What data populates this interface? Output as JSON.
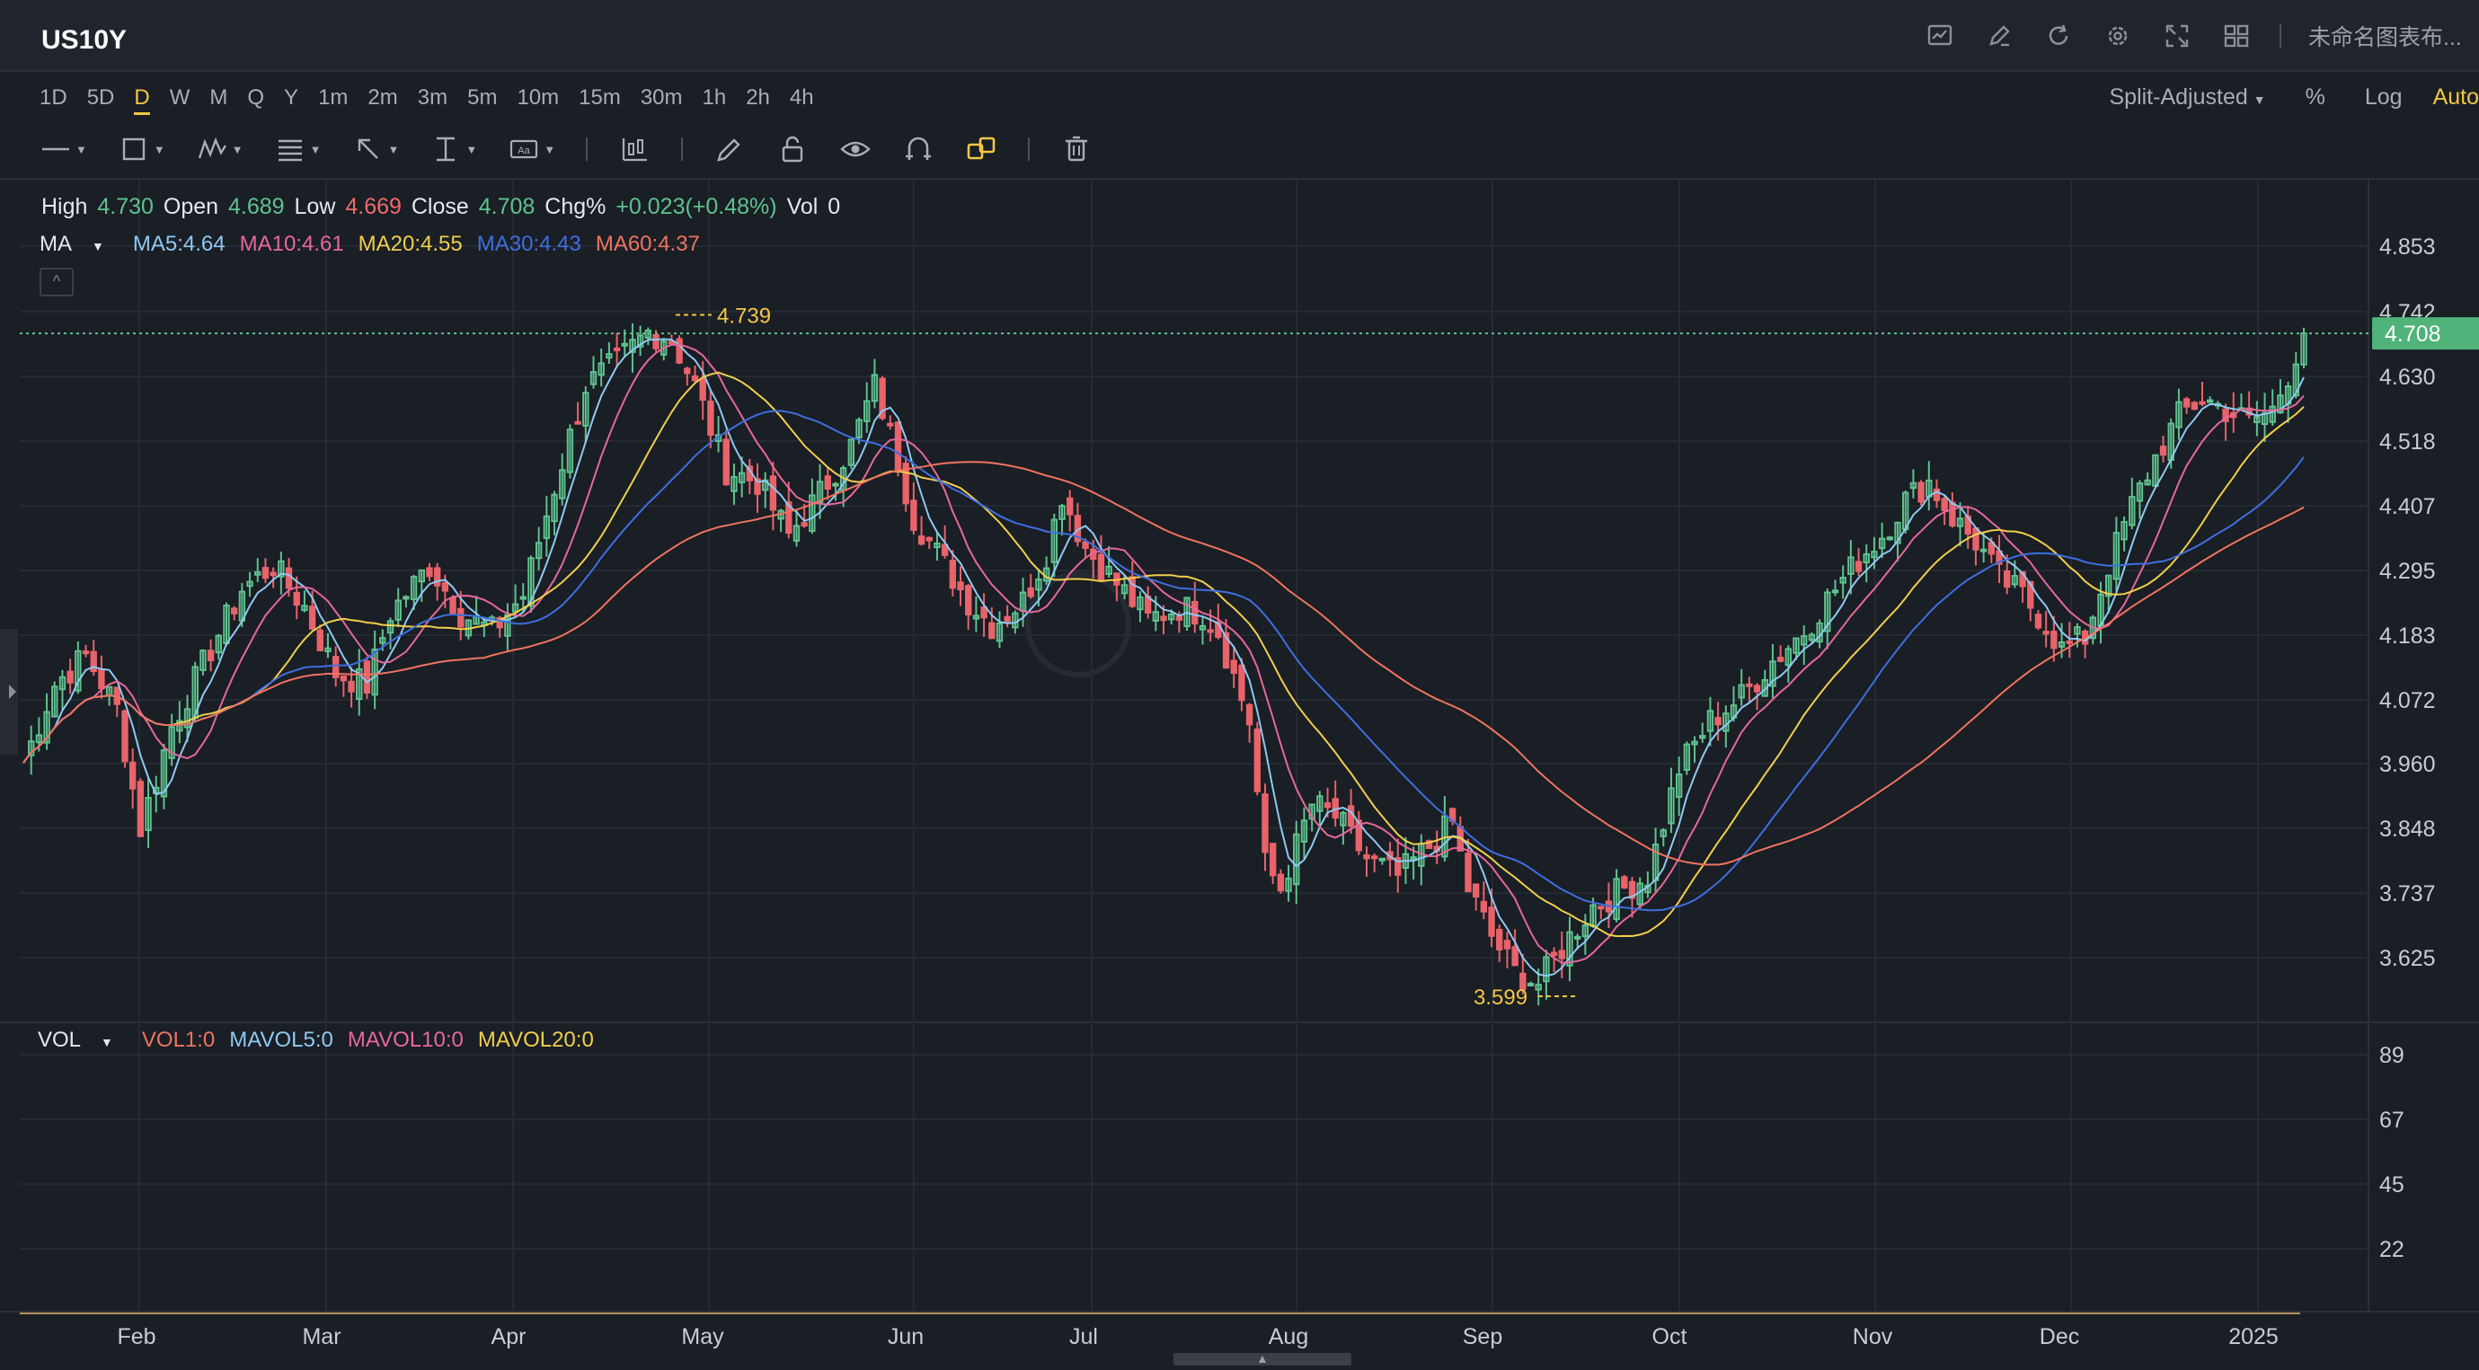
{
  "header": {
    "symbol": "US10Y",
    "layout_name": "未命名图表布...",
    "icons": [
      "indicator-chart-icon",
      "drawing-pen-icon",
      "refresh-icon",
      "settings-gear-icon",
      "fullscreen-icon",
      "layout-grid-icon"
    ]
  },
  "periods": [
    {
      "label": "1D",
      "active": false
    },
    {
      "label": "5D",
      "active": false
    },
    {
      "label": "D",
      "active": true
    },
    {
      "label": "W",
      "active": false
    },
    {
      "label": "M",
      "active": false
    },
    {
      "label": "Q",
      "active": false
    },
    {
      "label": "Y",
      "active": false
    },
    {
      "label": "1m",
      "active": false
    },
    {
      "label": "2m",
      "active": false
    },
    {
      "label": "3m",
      "active": false
    },
    {
      "label": "5m",
      "active": false
    },
    {
      "label": "10m",
      "active": false
    },
    {
      "label": "15m",
      "active": false
    },
    {
      "label": "30m",
      "active": false
    },
    {
      "label": "1h",
      "active": false
    },
    {
      "label": "2h",
      "active": false
    },
    {
      "label": "4h",
      "active": false
    }
  ],
  "right_options": {
    "adjust": "Split-Adjusted",
    "percent": "%",
    "log": "Log",
    "auto": "Auto"
  },
  "ohlc": {
    "high_label": "High",
    "high": "4.730",
    "open_label": "Open",
    "open": "4.689",
    "low_label": "Low",
    "low": "4.669",
    "close_label": "Close",
    "close": "4.708",
    "chg_label": "Chg%",
    "chg": "+0.023(+0.48%)",
    "vol_label": "Vol",
    "vol": "0"
  },
  "ma_legend": {
    "name": "MA",
    "items": [
      {
        "text": "MA5:4.64",
        "color": "#8fc9f2"
      },
      {
        "text": "MA10:4.61",
        "color": "#e6689a"
      },
      {
        "text": "MA20:4.55",
        "color": "#f0cf4c"
      },
      {
        "text": "MA30:4.43",
        "color": "#3d6fe0"
      },
      {
        "text": "MA60:4.37",
        "color": "#f0735f"
      }
    ]
  },
  "vol_legend": {
    "name": "VOL",
    "items": [
      {
        "text": "VOL1:0",
        "color": "#f0735f"
      },
      {
        "text": "MAVOL5:0",
        "color": "#8fc9f2"
      },
      {
        "text": "MAVOL10:0",
        "color": "#e6689a"
      },
      {
        "text": "MAVOL20:0",
        "color": "#f0cf4c"
      }
    ]
  },
  "chart_data": {
    "type": "candlestick",
    "price_ticks": [
      "4.853",
      "4.742",
      "4.630",
      "4.518",
      "4.407",
      "4.295",
      "4.183",
      "4.072",
      "3.960",
      "3.848",
      "3.737",
      "3.625"
    ],
    "price_range": [
      3.56,
      4.89
    ],
    "current_price": "4.708",
    "max_marker": {
      "label": "4.739",
      "value": 4.739,
      "month": "Apr"
    },
    "min_marker": {
      "label": "3.599",
      "value": 3.599,
      "month": "Sep"
    },
    "vol_ticks": [
      "89",
      "67",
      "45",
      "22"
    ],
    "x_labels": [
      "Feb",
      "Mar",
      "Apr",
      "May",
      "Jun",
      "Jul",
      "Aug",
      "Sep",
      "Oct",
      "Nov",
      "Dec",
      "2025"
    ],
    "path_points": [
      [
        0,
        3.99
      ],
      [
        4,
        4.12
      ],
      [
        8,
        4.17
      ],
      [
        12,
        4.08
      ],
      [
        15,
        3.88
      ],
      [
        19,
        4.05
      ],
      [
        24,
        4.18
      ],
      [
        28,
        4.28
      ],
      [
        32,
        4.32
      ],
      [
        36,
        4.25
      ],
      [
        40,
        4.14
      ],
      [
        44,
        4.12
      ],
      [
        47,
        4.24
      ],
      [
        52,
        4.32
      ],
      [
        56,
        4.24
      ],
      [
        60,
        4.21
      ],
      [
        64,
        4.27
      ],
      [
        68,
        4.45
      ],
      [
        72,
        4.62
      ],
      [
        76,
        4.66
      ],
      [
        80,
        4.71
      ],
      [
        83,
        4.7
      ],
      [
        86,
        4.62
      ],
      [
        90,
        4.48
      ],
      [
        94,
        4.46
      ],
      [
        98,
        4.37
      ],
      [
        102,
        4.44
      ],
      [
        106,
        4.52
      ],
      [
        109,
        4.62
      ],
      [
        111,
        4.54
      ],
      [
        114,
        4.4
      ],
      [
        118,
        4.32
      ],
      [
        121,
        4.26
      ],
      [
        124,
        4.22
      ],
      [
        128,
        4.26
      ],
      [
        131,
        4.34
      ],
      [
        133,
        4.44
      ],
      [
        136,
        4.35
      ],
      [
        140,
        4.29
      ],
      [
        144,
        4.23
      ],
      [
        148,
        4.25
      ],
      [
        151,
        4.24
      ],
      [
        153,
        4.21
      ],
      [
        157,
        4.06
      ],
      [
        159,
        3.82
      ],
      [
        161,
        3.78
      ],
      [
        165,
        3.92
      ],
      [
        168,
        3.9
      ],
      [
        172,
        3.83
      ],
      [
        176,
        3.8
      ],
      [
        180,
        3.85
      ],
      [
        183,
        3.89
      ],
      [
        185,
        3.78
      ],
      [
        188,
        3.7
      ],
      [
        191,
        3.64
      ],
      [
        194,
        3.62
      ],
      [
        197,
        3.68
      ],
      [
        201,
        3.75
      ],
      [
        205,
        3.78
      ],
      [
        208,
        3.8
      ],
      [
        212,
        3.98
      ],
      [
        216,
        4.06
      ],
      [
        220,
        4.1
      ],
      [
        224,
        4.16
      ],
      [
        228,
        4.21
      ],
      [
        232,
        4.28
      ],
      [
        235,
        4.33
      ],
      [
        238,
        4.37
      ],
      [
        241,
        4.43
      ],
      [
        244,
        4.46
      ],
      [
        247,
        4.4
      ],
      [
        250,
        4.36
      ],
      [
        253,
        4.3
      ],
      [
        256,
        4.27
      ],
      [
        259,
        4.22
      ],
      [
        261,
        4.18
      ],
      [
        264,
        4.2
      ],
      [
        267,
        4.32
      ],
      [
        270,
        4.42
      ],
      [
        273,
        4.5
      ],
      [
        276,
        4.57
      ],
      [
        279,
        4.6
      ],
      [
        282,
        4.58
      ],
      [
        285,
        4.56
      ],
      [
        288,
        4.58
      ],
      [
        290,
        4.64
      ],
      [
        292,
        4.708
      ]
    ]
  }
}
